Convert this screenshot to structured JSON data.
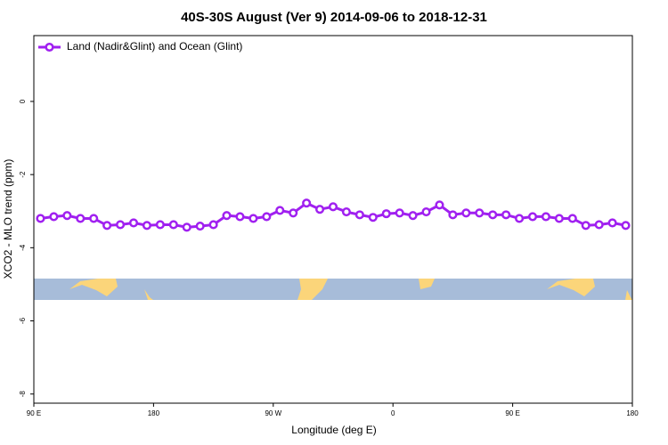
{
  "chart_data": {
    "type": "line",
    "title": "40S-30S August (Ver 9)   2014-09-06 to 2018-12-31",
    "x_label": "Longitude (deg E)",
    "y_label": "XCO2 - MLO trend (ppm)",
    "x": [
      95,
      105,
      115,
      125,
      135,
      145,
      155,
      165,
      175,
      185,
      195,
      205,
      215,
      225,
      235,
      245,
      255,
      265,
      275,
      285,
      295,
      305,
      315,
      325,
      335,
      345,
      355,
      365,
      375,
      385,
      395,
      405,
      415,
      425,
      435,
      445,
      455,
      465,
      475,
      485,
      495,
      505,
      515,
      525,
      535
    ],
    "series": [
      {
        "name": "Land (Nadir&Glint) and Ocean (Glint)",
        "color": "#a020f0",
        "values": [
          -3.2,
          -3.15,
          -3.12,
          -3.2,
          -3.2,
          -3.39,
          -3.37,
          -3.32,
          -3.39,
          -3.37,
          -3.37,
          -3.44,
          -3.41,
          -3.37,
          -3.12,
          -3.15,
          -3.2,
          -3.15,
          -2.98,
          -3.05,
          -2.78,
          -2.95,
          -2.88,
          -3.02,
          -3.1,
          -3.17,
          -3.07,
          -3.05,
          -3.12,
          -3.02,
          -2.83,
          -3.1,
          -3.05,
          -3.05,
          -3.1,
          -3.1,
          -3.2,
          -3.15,
          -3.15,
          -3.2,
          -3.2,
          -3.39,
          -3.37,
          -3.32,
          -3.39
        ]
      }
    ],
    "xlim": [
      90,
      540
    ],
    "xticks": [
      {
        "value": 90,
        "label": "90 E"
      },
      {
        "value": 180,
        "label": "180"
      },
      {
        "value": 270,
        "label": "90 W"
      },
      {
        "value": 360,
        "label": "0"
      },
      {
        "value": 450,
        "label": "90 E"
      },
      {
        "value": 540,
        "label": "180"
      }
    ],
    "ylim": [
      -8.25,
      1.8
    ],
    "yticks": [
      0,
      -2,
      -4,
      -6,
      -8
    ],
    "legend": "top-left"
  }
}
